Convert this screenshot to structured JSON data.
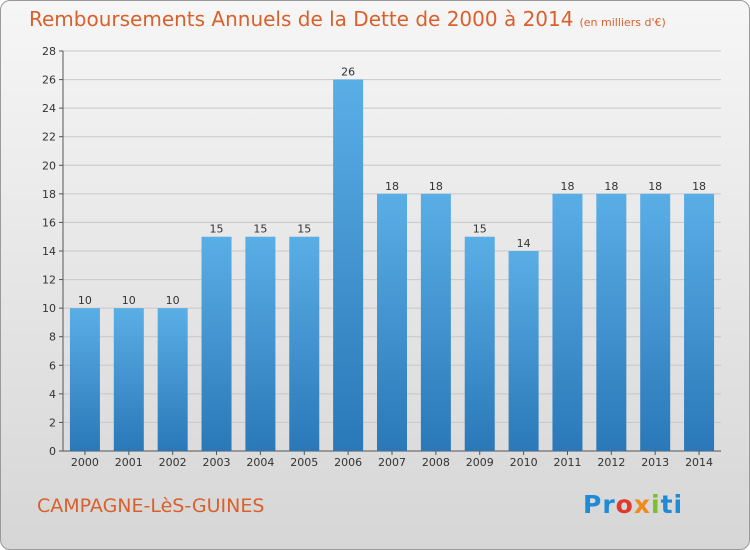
{
  "header": {
    "title": "Remboursements Annuels de la Dette de 2000 à 2014",
    "unit": "(en milliers d'€)"
  },
  "footer": {
    "place": "CAMPAGNE-LèS-GUINES",
    "logo": [
      "P",
      "r",
      "o",
      "x",
      "i",
      "t",
      "i"
    ],
    "logo_colors": [
      "#1f8ad6",
      "#1f8ad6",
      "#e0382a",
      "#f08a1c",
      "#7bbf2a",
      "#1f8ad6",
      "#1f8ad6"
    ]
  },
  "colors": {
    "bar_top": "#5aaee6",
    "bar_bottom": "#2a78b8",
    "title": "#d9602b",
    "grid": "#c8c8c8"
  },
  "chart_data": {
    "type": "bar",
    "categories": [
      "2000",
      "2001",
      "2002",
      "2003",
      "2004",
      "2005",
      "2006",
      "2007",
      "2008",
      "2009",
      "2010",
      "2011",
      "2012",
      "2013",
      "2014"
    ],
    "values": [
      10,
      10,
      10,
      15,
      15,
      15,
      26,
      18,
      18,
      15,
      14,
      18,
      18,
      18,
      18
    ],
    "title": "Remboursements Annuels de la Dette de 2000 à 2014",
    "ylim": [
      0,
      28
    ],
    "yticks": [
      0,
      2,
      4,
      6,
      8,
      10,
      12,
      14,
      16,
      18,
      20,
      22,
      24,
      26,
      28
    ],
    "grid": true,
    "data_labels": true
  }
}
